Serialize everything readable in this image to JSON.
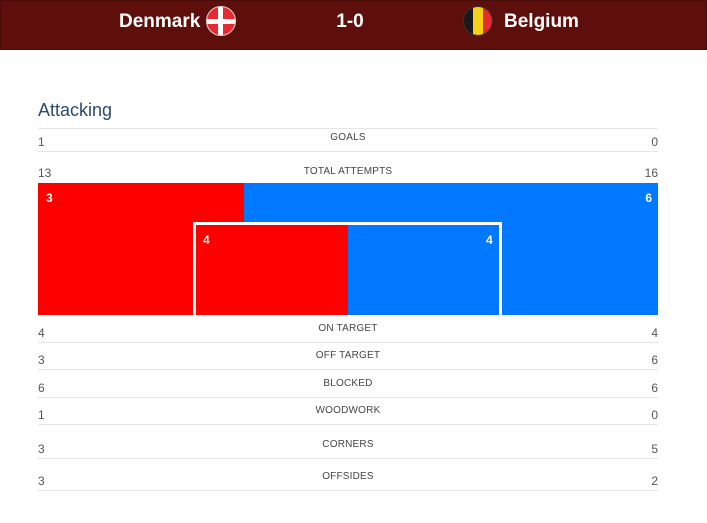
{
  "match": {
    "home_team": "Denmark",
    "away_team": "Belgium",
    "score": "1-0",
    "home_flag_icon": "denmark-flag-icon",
    "away_flag_icon": "belgium-flag-icon",
    "home_color": "#ff0000",
    "away_color": "#0078ff"
  },
  "section": {
    "title": "Attacking"
  },
  "stats": {
    "goals": {
      "label": "GOALS",
      "home": "1",
      "away": "0"
    },
    "total_attempts": {
      "label": "TOTAL ATTEMPTS",
      "home": "13",
      "away": "16"
    },
    "on_target": {
      "label": "ON TARGET",
      "home": "4",
      "away": "4"
    },
    "off_target": {
      "label": "OFF TARGET",
      "home": "3",
      "away": "6"
    },
    "blocked": {
      "label": "BLOCKED",
      "home": "6",
      "away": "6"
    },
    "woodwork": {
      "label": "WOODWORK",
      "home": "1",
      "away": "0"
    },
    "corners": {
      "label": "CORNERS",
      "home": "3",
      "away": "5"
    },
    "offsides": {
      "label": "OFFSIDES",
      "home": "3",
      "away": "2"
    }
  },
  "attempts_graphic": {
    "outside_home": "3",
    "outside_away": "6",
    "inside_home": "4",
    "inside_away": "4"
  }
}
